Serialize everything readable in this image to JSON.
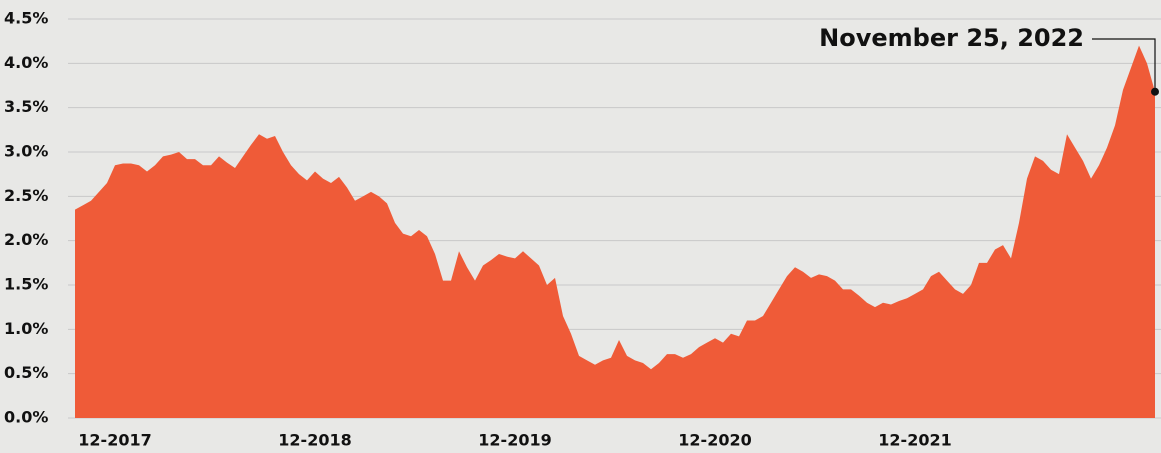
{
  "chart_data": {
    "type": "area",
    "annotation": "November 25, 2022",
    "color": "#ef5b38",
    "grid": true,
    "ylim": [
      0,
      4.5
    ],
    "yticks": [
      {
        "value": 0,
        "label": "0.0%"
      },
      {
        "value": 0.5,
        "label": "0.5%"
      },
      {
        "value": 1,
        "label": "1.0%"
      },
      {
        "value": 1.5,
        "label": "1.5%"
      },
      {
        "value": 2,
        "label": "2.0%"
      },
      {
        "value": 2.5,
        "label": "2.5%"
      },
      {
        "value": 3,
        "label": "3.0%"
      },
      {
        "value": 3.5,
        "label": "3.5%"
      },
      {
        "value": 4,
        "label": "4.0%"
      },
      {
        "value": 4.5,
        "label": "4.5%"
      }
    ],
    "categories": [
      null,
      null,
      null,
      null,
      null,
      "12-2017",
      null,
      null,
      null,
      null,
      null,
      null,
      null,
      null,
      null,
      null,
      null,
      null,
      null,
      null,
      null,
      null,
      null,
      null,
      null,
      null,
      null,
      null,
      null,
      null,
      "12-2018",
      null,
      null,
      null,
      null,
      null,
      null,
      null,
      null,
      null,
      null,
      null,
      null,
      null,
      null,
      null,
      null,
      null,
      null,
      null,
      null,
      null,
      null,
      null,
      null,
      "12-2019",
      null,
      null,
      null,
      null,
      null,
      null,
      null,
      null,
      null,
      null,
      null,
      null,
      null,
      null,
      null,
      null,
      null,
      null,
      null,
      null,
      null,
      null,
      null,
      null,
      "12-2020",
      null,
      null,
      null,
      null,
      null,
      null,
      null,
      null,
      null,
      null,
      null,
      null,
      null,
      null,
      null,
      null,
      null,
      null,
      null,
      null,
      null,
      null,
      null,
      null,
      "12-2021",
      null,
      null,
      null,
      null,
      null,
      null,
      null,
      null,
      null,
      null,
      null,
      null,
      null,
      null,
      null,
      null,
      null,
      null,
      null,
      null,
      null,
      null,
      null,
      null,
      null,
      null,
      null,
      null,
      null,
      null
    ],
    "values": [
      2.35,
      2.4,
      2.45,
      2.55,
      2.65,
      2.85,
      2.87,
      2.87,
      2.85,
      2.78,
      2.85,
      2.95,
      2.97,
      3.0,
      2.92,
      2.92,
      2.85,
      2.85,
      2.95,
      2.88,
      2.82,
      2.95,
      3.08,
      3.2,
      3.15,
      3.18,
      3.0,
      2.85,
      2.75,
      2.68,
      2.78,
      2.7,
      2.65,
      2.72,
      2.6,
      2.45,
      2.5,
      2.55,
      2.5,
      2.42,
      2.2,
      2.08,
      2.05,
      2.12,
      2.05,
      1.85,
      1.55,
      1.55,
      1.88,
      1.7,
      1.55,
      1.72,
      1.78,
      1.85,
      1.82,
      1.8,
      1.88,
      1.8,
      1.72,
      1.5,
      1.58,
      1.15,
      0.95,
      0.7,
      0.65,
      0.6,
      0.65,
      0.68,
      0.88,
      0.7,
      0.65,
      0.62,
      0.55,
      0.62,
      0.72,
      0.72,
      0.68,
      0.72,
      0.8,
      0.85,
      0.9,
      0.85,
      0.95,
      0.92,
      1.1,
      1.1,
      1.15,
      1.3,
      1.45,
      1.6,
      1.7,
      1.65,
      1.58,
      1.62,
      1.6,
      1.55,
      1.45,
      1.45,
      1.38,
      1.3,
      1.25,
      1.3,
      1.28,
      1.32,
      1.35,
      1.4,
      1.45,
      1.6,
      1.65,
      1.55,
      1.45,
      1.4,
      1.5,
      1.75,
      1.75,
      1.9,
      1.95,
      1.8,
      2.2,
      2.7,
      2.95,
      2.9,
      2.8,
      2.75,
      3.2,
      3.05,
      2.9,
      2.7,
      2.85,
      3.05,
      3.3,
      3.7,
      3.95,
      4.2,
      4.0,
      3.68
    ]
  }
}
